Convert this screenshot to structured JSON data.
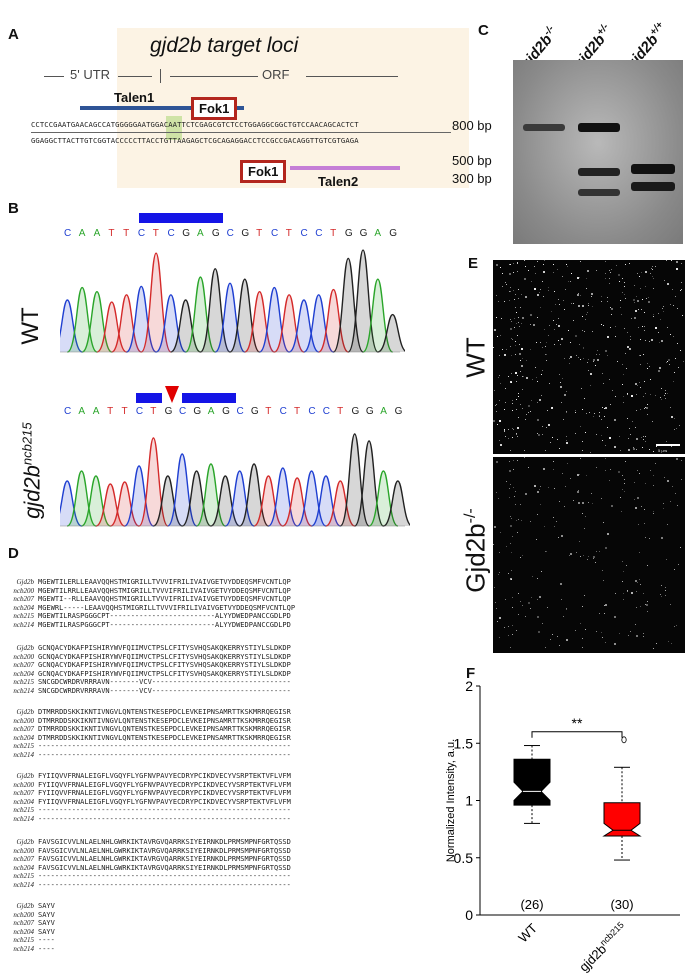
{
  "panelA": {
    "label": "A",
    "title": "gjd2b target loci",
    "utr": "5' UTR",
    "orf": "ORF",
    "talen1": "Talen1",
    "talen2": "Talen2",
    "fok1_top": "Fok1",
    "fok1_bottom": "Fok1",
    "seq_top": "CCTCCGAATGAACAGCCATGGGGGAATGGACAATTCTCGAGCGTCTCCTGGAGGCGGCTGTCCAACAGCACTCT",
    "seq_bottom": "GGAGGCTTACTTGTCGGTACCCCCTTACCTGTTAAGAGCTCGCAGAGGACCTCCGCCGACAGGTTGTCGTGAGA",
    "colors": {
      "box": "#fcf3e4",
      "talen1": "#2e5496",
      "talen2": "#c57ed6",
      "fok": "#b3261e",
      "highlight": "#cfe3a6"
    }
  },
  "panelB": {
    "label": "B",
    "wt_seq": [
      "C",
      "A",
      "A",
      "T",
      "T",
      "C",
      "T",
      "C",
      "G",
      "A",
      "G",
      "C",
      "G",
      "T",
      "C",
      "T",
      "C",
      "C",
      "T",
      "G",
      "G",
      "A",
      "G"
    ],
    "mut_seq": [
      "C",
      "A",
      "A",
      "T",
      "T",
      "C",
      "T",
      "G",
      "C",
      "G",
      "A",
      "G",
      "C",
      "G",
      "T",
      "C",
      "T",
      "C",
      "C",
      "T",
      "G",
      "G",
      "A",
      "G"
    ],
    "wt_label": "WT",
    "mut_label_main": "gjd2b",
    "mut_label_sup": "ncb215",
    "base_colors": {
      "A": "#2aa52a",
      "C": "#1f3fd1",
      "G": "#222222",
      "T": "#d42a2a"
    }
  },
  "panelC": {
    "label": "C",
    "lanes": [
      {
        "main": "gjd2b",
        "sup": "-/-"
      },
      {
        "main": "gjd2b",
        "sup": "+/-"
      },
      {
        "main": "gjd2b",
        "sup": "+/+"
      }
    ],
    "markers": [
      "800 bp",
      "500 bp",
      "300 bp"
    ]
  },
  "panelD": {
    "label": "D",
    "blocks": [
      {
        "names": [
          "Gjd2b",
          "ncb200",
          "ncb207",
          "ncb204",
          "ncb215",
          "ncb214"
        ],
        "seqs": [
          "MGEWTILERLLEAAVQQHSTMIGRILLTVVVIFRILIVAIVGETVYDDEQSMFVCNTLQP",
          "MGEWTILRRLLEAAVQQHSTMIGRILLTVVVIFRILIVAIVGETVYDDEQSMFVCNTLQP",
          "MGEWTI--RLLEAAVQQHSTMIGRILLTVVVIFRILIVAIVGETVYDDEQSMFVCNTLQP",
          "MGEWRL-----LEAAVQQHSTMIGRILLTVVVIFRILIVAIVGETVYDDEQSMFVCNTLQP",
          "MGEWTILRASPGGGCPT-------------------------ALYYDWEDPANCCGDLPD",
          "MGEWTILRASPGGGCPT-------------------------ALYYDWEDPANCCGDLPD"
        ]
      },
      {
        "names": [
          "Gjd2b",
          "ncb200",
          "ncb207",
          "ncb204",
          "ncb215",
          "ncb214"
        ],
        "seqs": [
          "GCNQACYDKAFPISHIRYWVFQIIMVCTPSLCFITYSVHQSAKQKERRYSTIYLSLDKDP",
          "GCNQACYDKAFPISHIRYWVFQIIMVCTPSLCFITYSVHQSAKQKERRYSTIYLSLDKDP",
          "GCNQACYDKAFPISHIRYWVFQIIMVCTPSLCFITYSVHQSAKQKERRYSTIYLSLDKDP",
          "GCNQACYDKAFPISHIRYWVFQIIMVCTPSLCFITYSVHQSAKQKERRYSTIYLSLDKDP",
          "SNCGDCWRDRVRRRAVN-------VCV---------------------------------",
          "SNCGDCWRDRVRRRAVN-------VCV---------------------------------"
        ]
      },
      {
        "names": [
          "Gjd2b",
          "ncb200",
          "ncb207",
          "ncb204",
          "ncb215",
          "ncb214"
        ],
        "seqs": [
          "DTMRRDDSKKIKNTIVNGVLQNTENSTKESEPDCLEVKEIPNSAMRTTKSKMRRQEGISR",
          "DTMRRDDSKKIKNTIVNGVLQNTENSTKESEPDCLEVKEIPNSAMRTTKSKMRRQEGISR",
          "DTMRRDDSKKIKNTIVNGVLQNTENSTKESEPDCLEVKEIPNSAMRTTKSKMRRQEGISR",
          "DTMRRDDSKKIKNTIVNGVLQNTENSTKESEPDCLEVKEIPNSAMRTTKSKMRRQEGISR",
          "------------------------------------------------------------",
          "------------------------------------------------------------"
        ]
      },
      {
        "names": [
          "Gjd2b",
          "ncb200",
          "ncb207",
          "ncb204",
          "ncb215",
          "ncb214"
        ],
        "seqs": [
          "FYIIQVVFRNALEIGFLVGQYFLYGFNVPAVYECDRYPCIKDVECYVSRPTEKTVFLVFM",
          "FYIIQVVFRNALEIGFLVGQYFLYGFNVPAVYECDRYPCIKDVECYVSRPTEKTVFLVFM",
          "FYIIQVVFRNALEIGFLVGQYFLYGFNVPAVYECDRYPCIKDVECYVSRPTEKTVFLVFM",
          "FYIIQVVFRNALEIGFLVGQYFLYGFNVPAVYECDRYPCIKDVECYVSRPTEKTVFLVFM",
          "------------------------------------------------------------",
          "------------------------------------------------------------"
        ]
      },
      {
        "names": [
          "Gjd2b",
          "ncb200",
          "ncb207",
          "ncb204",
          "ncb215",
          "ncb214"
        ],
        "seqs": [
          "FAVSGICVVLNLAELNHLGWRKIKTAVRGVQARRKSIYEIRNKDLPRMSMPNFGRTQSSD",
          "FAVSGICVVLNLAELNHLGWRKIKTAVRGVQARRKSIYEIRNKDLPRMSMPNFGRTQSSD",
          "FAVSGICVVLNLAELNHLGWRKIKTAVRGVQARRKSIYEIRNKDLPRMSMPNFGRTQSSD",
          "FAVSGICVVLNLAELNHLGWRKIKTAVRGVQARRKSIYEIRNKDLPRMSMPNFGRTQSSD",
          "------------------------------------------------------------",
          "------------------------------------------------------------"
        ]
      },
      {
        "names": [
          "Gjd2b",
          "ncb200",
          "ncb207",
          "ncb204",
          "ncb215",
          "ncb214"
        ],
        "seqs": [
          "SAYV",
          "SAYV",
          "SAYV",
          "SAYV",
          "----",
          "----"
        ]
      }
    ]
  },
  "panelE": {
    "label": "E",
    "wt_label": "WT",
    "ko_label_main": "Gjd2b",
    "ko_label_sup": "-/-",
    "scalebar": "5 µm"
  },
  "panelF": {
    "label": "F",
    "significance": "**",
    "chart_data": {
      "type": "box",
      "ylabel": "Normalized Intensity, a.u.",
      "ylim": [
        0,
        2
      ],
      "yticks": [
        "0",
        "0.5",
        "1",
        "1.5",
        "2"
      ],
      "categories": [
        "WT",
        "gjd2b ncb215"
      ],
      "category_main": [
        "WT",
        "gjd2b"
      ],
      "category_sup": [
        "",
        "ncb215"
      ],
      "counts": [
        "(26)",
        "(30)"
      ],
      "series": [
        {
          "min": 0.8,
          "q1": 0.96,
          "median": 1.08,
          "q3": 1.36,
          "max": 1.48,
          "notch_low": 1.0,
          "notch_high": 1.16,
          "color": "#000000",
          "outliers": []
        },
        {
          "min": 0.48,
          "q1": 0.69,
          "median": 0.74,
          "q3": 0.98,
          "max": 1.29,
          "notch_low": 0.69,
          "notch_high": 0.8,
          "color": "#ff0000",
          "outliers": [
            1.53
          ]
        }
      ]
    }
  }
}
